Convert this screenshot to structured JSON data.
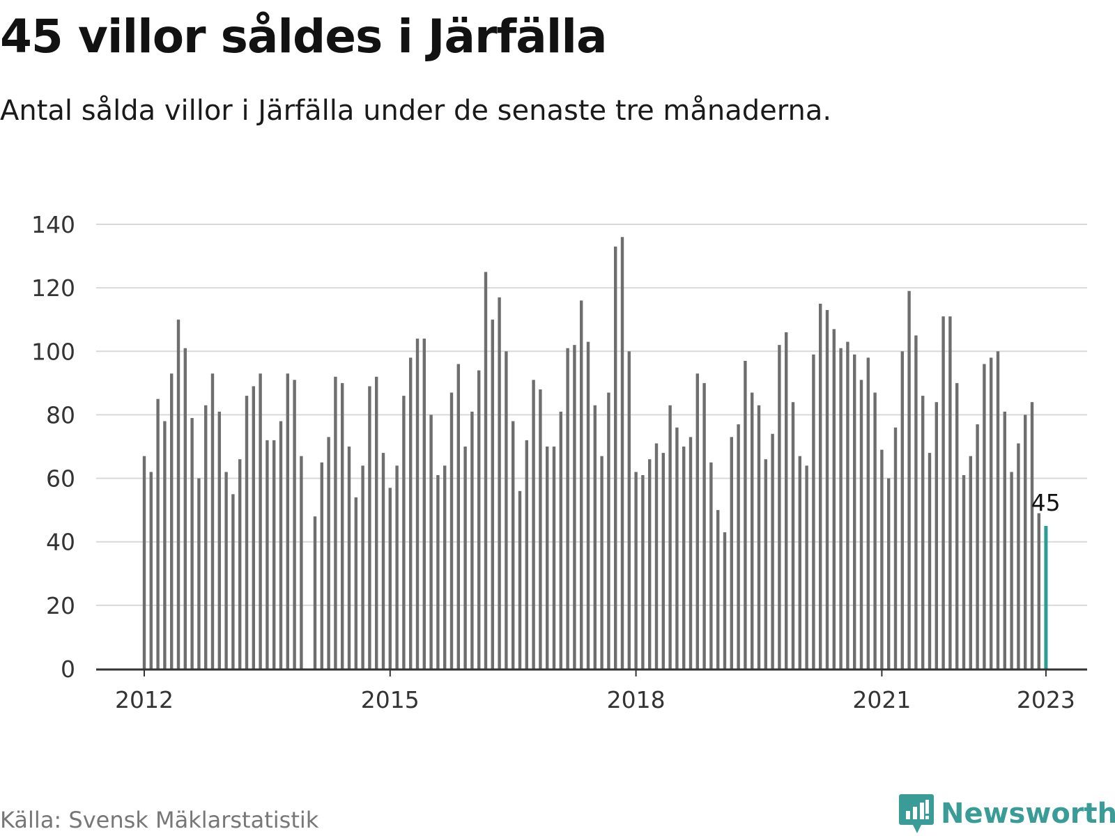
{
  "header": {
    "title": "45 villor såldes i Järfälla",
    "subtitle": "Antal sålda villor i Järfälla under de senaste tre månaderna."
  },
  "footer": {
    "source": "Källa: Svensk Mäklarstatistik",
    "brand": "Newsworthy",
    "brand_icon": "newsworthy-logo-icon"
  },
  "colors": {
    "bar": "#6e6e6e",
    "highlight": "#2a9d94",
    "grid": "#d9d9d9",
    "axis": "#333333",
    "brand": "#3a9c96"
  },
  "chart_data": {
    "type": "bar",
    "title": "45 villor såldes i Järfälla",
    "subtitle": "Antal sålda villor i Järfälla under de senaste tre månaderna.",
    "xlabel": "",
    "ylabel": "",
    "ylim": [
      0,
      140
    ],
    "yticks": [
      "0",
      "20",
      "40",
      "60",
      "80",
      "100",
      "120",
      "140"
    ],
    "xticks": [
      "2012",
      "2015",
      "2018",
      "2021",
      "2023"
    ],
    "grid": true,
    "legend": "none",
    "annotation": "45",
    "values": [
      67,
      62,
      85,
      78,
      93,
      110,
      101,
      79,
      60,
      83,
      93,
      81,
      62,
      55,
      66,
      86,
      89,
      93,
      72,
      72,
      78,
      93,
      91,
      67,
      0,
      48,
      65,
      73,
      92,
      90,
      70,
      54,
      64,
      89,
      92,
      68,
      57,
      64,
      86,
      98,
      104,
      104,
      80,
      61,
      64,
      87,
      96,
      70,
      81,
      94,
      125,
      110,
      117,
      100,
      78,
      56,
      72,
      91,
      88,
      70,
      70,
      81,
      101,
      102,
      116,
      103,
      83,
      67,
      87,
      133,
      136,
      100,
      62,
      61,
      66,
      71,
      68,
      83,
      76,
      70,
      73,
      93,
      90,
      65,
      50,
      43,
      73,
      77,
      97,
      87,
      83,
      66,
      74,
      102,
      106,
      84,
      67,
      64,
      99,
      115,
      113,
      107,
      101,
      103,
      99,
      91,
      98,
      87,
      69,
      60,
      76,
      100,
      119,
      105,
      86,
      68,
      84,
      111,
      111,
      90,
      61,
      67,
      77,
      96,
      98,
      100,
      81,
      62,
      71,
      80,
      84,
      49,
      45
    ],
    "highlight_last": true
  }
}
